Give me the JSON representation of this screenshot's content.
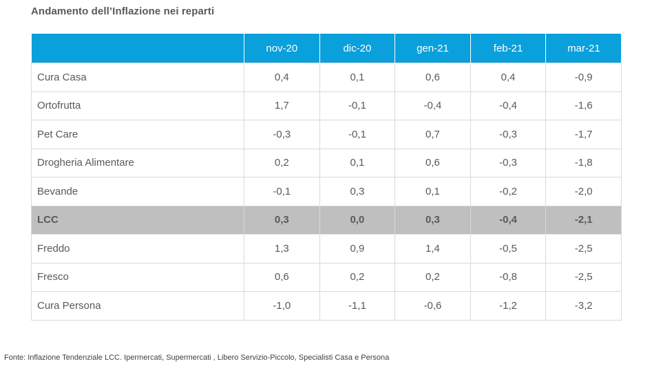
{
  "chart_data": {
    "type": "table",
    "title": "Andamento dell’Inflazione nei reparti",
    "columns": [
      "nov-20",
      "dic-20",
      "gen-21",
      "feb-21",
      "mar-21"
    ],
    "rows": [
      {
        "label": "Cura Casa",
        "values": [
          "0,4",
          "0,1",
          "0,6",
          "0,4",
          "-0,9"
        ]
      },
      {
        "label": "Ortofrutta",
        "values": [
          "1,7",
          "-0,1",
          "-0,4",
          "-0,4",
          "-1,6"
        ]
      },
      {
        "label": "Pet Care",
        "values": [
          "-0,3",
          "-0,1",
          "0,7",
          "-0,3",
          "-1,7"
        ]
      },
      {
        "label": "Drogheria Alimentare",
        "values": [
          "0,2",
          "0,1",
          "0,6",
          "-0,3",
          "-1,8"
        ]
      },
      {
        "label": "Bevande",
        "values": [
          "-0,1",
          "0,3",
          "0,1",
          "-0,2",
          "-2,0"
        ]
      },
      {
        "label": "LCC",
        "values": [
          "0,3",
          "0,0",
          "0,3",
          "-0,4",
          "-2,1"
        ],
        "highlight": true
      },
      {
        "label": "Freddo",
        "values": [
          "1,3",
          "0,9",
          "1,4",
          "-0,5",
          "-2,5"
        ]
      },
      {
        "label": "Fresco",
        "values": [
          "0,6",
          "0,2",
          "0,2",
          "-0,8",
          "-2,5"
        ]
      },
      {
        "label": "Cura Persona",
        "values": [
          "-1,0",
          "-1,1",
          "-0,6",
          "-1,2",
          "-3,2"
        ]
      }
    ],
    "source": "Fonte: Inflazione Tendenziale LCC. Ipermercati, Supermercati , Libero Servizio-Piccolo, Specialisti Casa e Persona"
  },
  "colors": {
    "header_bg": "#0aa0dc",
    "highlight_bg": "#bfbfbf",
    "text": "#595959"
  }
}
